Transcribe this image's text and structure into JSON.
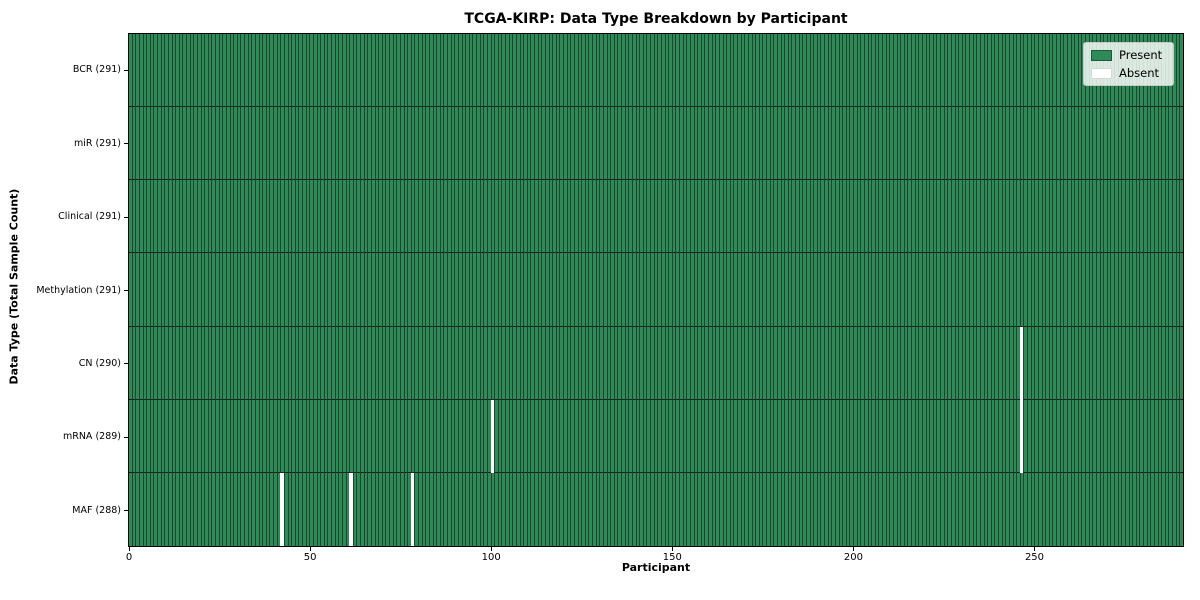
{
  "chart_data": {
    "type": "heatmap",
    "title": "TCGA-KIRP: Data Type Breakdown by Participant",
    "xlabel": "Participant",
    "ylabel": "Data Type (Total Sample Count)",
    "x_ticks": [
      0,
      50,
      100,
      150,
      200,
      250
    ],
    "x_range": [
      0,
      291
    ],
    "total_participants": 291,
    "grid": false,
    "legend_position": "upper right",
    "rows": [
      {
        "label": "BCR (291)",
        "data_type": "BCR",
        "present_count": 291,
        "absent_participants": []
      },
      {
        "label": "miR (291)",
        "data_type": "miR",
        "present_count": 291,
        "absent_participants": []
      },
      {
        "label": "Clinical (291)",
        "data_type": "Clinical",
        "present_count": 291,
        "absent_participants": []
      },
      {
        "label": "Methylation (291)",
        "data_type": "Methylation",
        "present_count": 291,
        "absent_participants": []
      },
      {
        "label": "CN (290)",
        "data_type": "CN",
        "present_count": 290,
        "absent_participants": [
          246
        ]
      },
      {
        "label": "mRNA (289)",
        "data_type": "mRNA",
        "present_count": 289,
        "absent_participants": [
          100,
          246
        ]
      },
      {
        "label": "MAF (288)",
        "data_type": "MAF",
        "present_count": 288,
        "absent_participants": [
          42,
          61,
          78
        ]
      }
    ],
    "legend": [
      {
        "label": "Present",
        "color": "#2e8b57"
      },
      {
        "label": "Absent",
        "color": "#ffffff"
      }
    ],
    "colors": {
      "present": "#2e8b57",
      "absent": "#ffffff",
      "bar_edge": "#1e4530",
      "row_separator": "#1a231c",
      "axis_spine": "#000000"
    }
  }
}
